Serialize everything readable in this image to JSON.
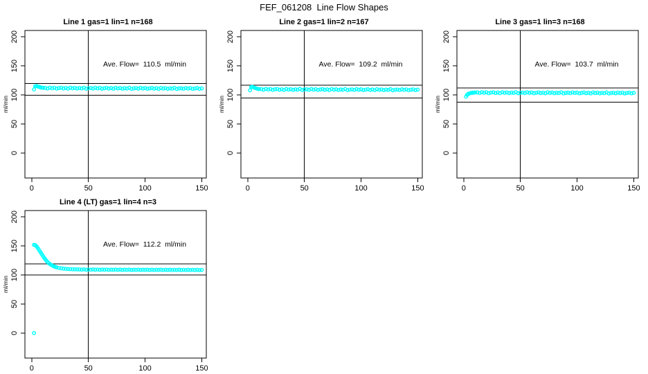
{
  "figure": {
    "title": "FEF_061208  Line Flow Shapes",
    "background": "#FFFFFF",
    "point_color": "#00FFFF",
    "axis_color": "#000000"
  },
  "chart_data": [
    {
      "type": "scatter",
      "title": "Line 1 gas=1 lin=1 n=168",
      "annotation": "Ave. Flow=  110.5  ml/min",
      "ave_flow_ml_min": 110.5,
      "n": 168,
      "xlabel": "",
      "ylabel": "ml/min",
      "xlim": [
        -6,
        154
      ],
      "ylim": [
        -43,
        211
      ],
      "xticks": [
        0,
        50,
        100,
        150
      ],
      "yticks": [
        0,
        50,
        100,
        150,
        200
      ],
      "grid": false,
      "legend": "none",
      "marker": "open-circle",
      "ref_lines_h": [
        99.5,
        119.5
      ],
      "ref_lines_v": [
        50
      ],
      "points": [
        [
          2,
          109.5
        ],
        [
          3,
          114.8
        ],
        [
          4,
          115.3
        ],
        [
          5,
          115
        ],
        [
          6,
          114.2
        ],
        [
          7,
          113.6
        ],
        [
          8,
          113
        ],
        [
          9,
          112.6
        ],
        [
          10,
          112.3
        ],
        [
          12,
          112.1
        ],
        [
          14,
          111.2
        ],
        [
          16,
          112.6
        ],
        [
          18,
          111.5
        ],
        [
          20,
          112.3
        ],
        [
          22,
          110.9
        ],
        [
          24,
          111.8
        ],
        [
          26,
          112.4
        ],
        [
          28,
          111.2
        ],
        [
          30,
          112
        ],
        [
          32,
          110.9
        ],
        [
          34,
          112.5
        ],
        [
          36,
          111.5
        ],
        [
          38,
          112.1
        ],
        [
          40,
          111
        ],
        [
          42,
          111.8
        ],
        [
          44,
          111.3
        ],
        [
          46,
          112.6
        ],
        [
          48,
          110.7
        ],
        [
          50,
          111.6
        ],
        [
          52,
          111.9
        ],
        [
          54,
          111.1
        ],
        [
          56,
          112.4
        ],
        [
          58,
          111.4
        ],
        [
          60,
          112.1
        ],
        [
          62,
          110.8
        ],
        [
          64,
          111.6
        ],
        [
          66,
          112.2
        ],
        [
          68,
          111
        ],
        [
          70,
          111.8
        ],
        [
          72,
          110.7
        ],
        [
          74,
          112.3
        ],
        [
          76,
          111.3
        ],
        [
          78,
          111.9
        ],
        [
          80,
          110.8
        ],
        [
          82,
          111.6
        ],
        [
          84,
          111.1
        ],
        [
          86,
          112.4
        ],
        [
          88,
          110.5
        ],
        [
          90,
          111.4
        ],
        [
          92,
          111.7
        ],
        [
          94,
          110.9
        ],
        [
          96,
          112.2
        ],
        [
          98,
          111.2
        ],
        [
          100,
          111.9
        ],
        [
          102,
          110.6
        ],
        [
          104,
          111.4
        ],
        [
          106,
          112
        ],
        [
          108,
          110.8
        ],
        [
          110,
          111.6
        ],
        [
          112,
          110.5
        ],
        [
          114,
          112.1
        ],
        [
          116,
          111.1
        ],
        [
          118,
          111.7
        ],
        [
          120,
          110.6
        ],
        [
          122,
          111.4
        ],
        [
          124,
          110.9
        ],
        [
          126,
          112.2
        ],
        [
          128,
          110.3
        ],
        [
          130,
          111.2
        ],
        [
          132,
          111.5
        ],
        [
          134,
          110.7
        ],
        [
          136,
          112
        ],
        [
          138,
          111
        ],
        [
          140,
          111.7
        ],
        [
          142,
          110.4
        ],
        [
          144,
          111.2
        ],
        [
          146,
          111.8
        ],
        [
          148,
          110.6
        ],
        [
          150,
          111.4
        ]
      ]
    },
    {
      "type": "scatter",
      "title": "Line 2 gas=1 lin=2 n=167",
      "annotation": "Ave. Flow=  109.2  ml/min",
      "ave_flow_ml_min": 109.2,
      "n": 167,
      "xlabel": "",
      "ylabel": "ml/min",
      "xlim": [
        -6,
        154
      ],
      "ylim": [
        -43,
        211
      ],
      "xticks": [
        0,
        50,
        100,
        150
      ],
      "yticks": [
        0,
        50,
        100,
        150,
        200
      ],
      "grid": false,
      "legend": "none",
      "marker": "open-circle",
      "ref_lines_h": [
        95,
        117
      ],
      "ref_lines_v": [
        50
      ],
      "points": [
        [
          2,
          108
        ],
        [
          3,
          113.5
        ],
        [
          4,
          114
        ],
        [
          5,
          113.3
        ],
        [
          6,
          112.4
        ],
        [
          7,
          111.6
        ],
        [
          8,
          111
        ],
        [
          9,
          110.5
        ],
        [
          10,
          110.1
        ],
        [
          12,
          110
        ],
        [
          14,
          109.1
        ],
        [
          16,
          110.4
        ],
        [
          18,
          109.4
        ],
        [
          20,
          110.1
        ],
        [
          22,
          108.8
        ],
        [
          24,
          109.7
        ],
        [
          26,
          110.2
        ],
        [
          28,
          109
        ],
        [
          30,
          109.8
        ],
        [
          32,
          108.7
        ],
        [
          34,
          110.3
        ],
        [
          36,
          109.3
        ],
        [
          38,
          109.9
        ],
        [
          40,
          108.8
        ],
        [
          42,
          109.6
        ],
        [
          44,
          109.1
        ],
        [
          46,
          110.4
        ],
        [
          48,
          108.5
        ],
        [
          50,
          109.4
        ],
        [
          52,
          109.7
        ],
        [
          54,
          108.9
        ],
        [
          56,
          110.2
        ],
        [
          58,
          109.2
        ],
        [
          60,
          109.9
        ],
        [
          62,
          108.6
        ],
        [
          64,
          109.4
        ],
        [
          66,
          110
        ],
        [
          68,
          108.8
        ],
        [
          70,
          109.6
        ],
        [
          72,
          108.5
        ],
        [
          74,
          110.1
        ],
        [
          76,
          109.1
        ],
        [
          78,
          109.7
        ],
        [
          80,
          108.6
        ],
        [
          82,
          109.4
        ],
        [
          84,
          108.9
        ],
        [
          86,
          110.2
        ],
        [
          88,
          108.3
        ],
        [
          90,
          109.2
        ],
        [
          92,
          109.5
        ],
        [
          94,
          108.7
        ],
        [
          96,
          110
        ],
        [
          98,
          109
        ],
        [
          100,
          109.7
        ],
        [
          102,
          108.4
        ],
        [
          104,
          109.2
        ],
        [
          106,
          109.8
        ],
        [
          108,
          108.6
        ],
        [
          110,
          109.4
        ],
        [
          112,
          108.3
        ],
        [
          114,
          109.9
        ],
        [
          116,
          108.9
        ],
        [
          118,
          109.5
        ],
        [
          120,
          108.4
        ],
        [
          122,
          109.2
        ],
        [
          124,
          108.7
        ],
        [
          126,
          110
        ],
        [
          128,
          108.1
        ],
        [
          130,
          109
        ],
        [
          132,
          109.3
        ],
        [
          134,
          108.5
        ],
        [
          136,
          109.8
        ],
        [
          138,
          108.8
        ],
        [
          140,
          109.5
        ],
        [
          142,
          108.2
        ],
        [
          144,
          109
        ],
        [
          146,
          109.6
        ],
        [
          148,
          108.4
        ],
        [
          150,
          109.2
        ]
      ]
    },
    {
      "type": "scatter",
      "title": "Line 3 gas=1 lin=3 n=168",
      "annotation": "Ave. Flow=  103.7  ml/min",
      "ave_flow_ml_min": 103.7,
      "n": 168,
      "xlabel": "",
      "ylabel": "ml/min",
      "xlim": [
        -6,
        154
      ],
      "ylim": [
        -43,
        211
      ],
      "xticks": [
        0,
        50,
        100,
        150
      ],
      "yticks": [
        0,
        50,
        100,
        150,
        200
      ],
      "grid": false,
      "legend": "none",
      "marker": "open-circle",
      "ref_lines_h": [
        87.5,
        112
      ],
      "ref_lines_v": [
        50
      ],
      "points": [
        [
          2,
          97
        ],
        [
          3,
          100.2
        ],
        [
          4,
          101.8
        ],
        [
          5,
          102.6
        ],
        [
          6,
          103.2
        ],
        [
          7,
          103.6
        ],
        [
          8,
          103.9
        ],
        [
          9,
          104.1
        ],
        [
          10,
          104.2
        ],
        [
          12,
          104.4
        ],
        [
          14,
          103.5
        ],
        [
          16,
          104.8
        ],
        [
          18,
          103.8
        ],
        [
          20,
          104.5
        ],
        [
          22,
          103.1
        ],
        [
          24,
          104
        ],
        [
          26,
          104.6
        ],
        [
          28,
          103.4
        ],
        [
          30,
          104.2
        ],
        [
          32,
          103.1
        ],
        [
          34,
          104.7
        ],
        [
          36,
          103.7
        ],
        [
          38,
          104.3
        ],
        [
          40,
          103.2
        ],
        [
          42,
          104
        ],
        [
          44,
          103.5
        ],
        [
          46,
          104.8
        ],
        [
          48,
          102.9
        ],
        [
          50,
          103.8
        ],
        [
          52,
          104.1
        ],
        [
          54,
          103.3
        ],
        [
          56,
          104.6
        ],
        [
          58,
          103.6
        ],
        [
          60,
          104.3
        ],
        [
          62,
          103
        ],
        [
          64,
          103.8
        ],
        [
          66,
          104.4
        ],
        [
          68,
          103.2
        ],
        [
          70,
          104
        ],
        [
          72,
          102.9
        ],
        [
          74,
          104.5
        ],
        [
          76,
          103.5
        ],
        [
          78,
          104.1
        ],
        [
          80,
          103
        ],
        [
          82,
          103.8
        ],
        [
          84,
          103.3
        ],
        [
          86,
          104.6
        ],
        [
          88,
          102.7
        ],
        [
          90,
          103.6
        ],
        [
          92,
          103.9
        ],
        [
          94,
          103.1
        ],
        [
          96,
          104.4
        ],
        [
          98,
          103.4
        ],
        [
          100,
          104.1
        ],
        [
          102,
          102.8
        ],
        [
          104,
          103.6
        ],
        [
          106,
          104.2
        ],
        [
          108,
          103
        ],
        [
          110,
          103.8
        ],
        [
          112,
          102.7
        ],
        [
          114,
          104.3
        ],
        [
          116,
          103.3
        ],
        [
          118,
          103.9
        ],
        [
          120,
          102.8
        ],
        [
          122,
          103.6
        ],
        [
          124,
          103.1
        ],
        [
          126,
          104.4
        ],
        [
          128,
          102.5
        ],
        [
          130,
          103.4
        ],
        [
          132,
          103.7
        ],
        [
          134,
          102.9
        ],
        [
          136,
          104.2
        ],
        [
          138,
          103.2
        ],
        [
          140,
          103.9
        ],
        [
          142,
          102.6
        ],
        [
          144,
          103.4
        ],
        [
          146,
          104
        ],
        [
          148,
          102.8
        ],
        [
          150,
          103.6
        ]
      ]
    },
    {
      "type": "scatter",
      "title": "Line 4 (LT) gas=1 lin=4 n=3",
      "annotation": "Ave. Flow=  112.2  ml/min",
      "ave_flow_ml_min": 112.2,
      "n": 3,
      "xlabel": "",
      "ylabel": "ml/min",
      "xlim": [
        -6,
        154
      ],
      "ylim": [
        -43,
        211
      ],
      "xticks": [
        0,
        50,
        100,
        150
      ],
      "yticks": [
        0,
        50,
        100,
        150,
        200
      ],
      "grid": false,
      "legend": "none",
      "marker": "open-circle",
      "ref_lines_h": [
        100,
        119
      ],
      "ref_lines_v": [
        50
      ],
      "points": [
        [
          2,
          0
        ],
        [
          2,
          152
        ],
        [
          3,
          151.5
        ],
        [
          4,
          150
        ],
        [
          5,
          147.5
        ],
        [
          6,
          144.5
        ],
        [
          7,
          141.5
        ],
        [
          8,
          138.5
        ],
        [
          9,
          135.5
        ],
        [
          10,
          132.5
        ],
        [
          11,
          129.5
        ],
        [
          12,
          127
        ],
        [
          13,
          124.5
        ],
        [
          14,
          122.5
        ],
        [
          15,
          120.5
        ],
        [
          16,
          119
        ],
        [
          17,
          117.5
        ],
        [
          18,
          116.5
        ],
        [
          19,
          115.5
        ],
        [
          20,
          114.5
        ],
        [
          21,
          113.8
        ],
        [
          22,
          113.2
        ],
        [
          24,
          112.2
        ],
        [
          26,
          111.5
        ],
        [
          28,
          111
        ],
        [
          30,
          110.6
        ],
        [
          32,
          110.3
        ],
        [
          34,
          110.1
        ],
        [
          36,
          109.9
        ],
        [
          38,
          109.8
        ],
        [
          40,
          109.7
        ],
        [
          42,
          109.6
        ],
        [
          44,
          109.3
        ],
        [
          46,
          109.8
        ],
        [
          48,
          109
        ],
        [
          50,
          109.5
        ],
        [
          52,
          109.2
        ],
        [
          54,
          109.6
        ],
        [
          56,
          109.1
        ],
        [
          58,
          109.5
        ],
        [
          60,
          109
        ],
        [
          62,
          109.4
        ],
        [
          64,
          109.1
        ],
        [
          66,
          109.5
        ],
        [
          68,
          108.9
        ],
        [
          70,
          109.3
        ],
        [
          72,
          109
        ],
        [
          74,
          109.4
        ],
        [
          76,
          108.9
        ],
        [
          78,
          109.3
        ],
        [
          80,
          108.8
        ],
        [
          82,
          109.2
        ],
        [
          84,
          108.9
        ],
        [
          86,
          109.3
        ],
        [
          88,
          108.7
        ],
        [
          90,
          109.1
        ],
        [
          92,
          108.9
        ],
        [
          94,
          109.3
        ],
        [
          96,
          108.7
        ],
        [
          98,
          109.1
        ],
        [
          100,
          108.8
        ],
        [
          102,
          109.2
        ],
        [
          104,
          108.7
        ],
        [
          106,
          109.1
        ],
        [
          108,
          108.6
        ],
        [
          110,
          109
        ],
        [
          112,
          108.8
        ],
        [
          114,
          109.2
        ],
        [
          116,
          108.6
        ],
        [
          118,
          109
        ],
        [
          120,
          108.7
        ],
        [
          122,
          109.1
        ],
        [
          124,
          108.5
        ],
        [
          126,
          108.9
        ],
        [
          128,
          108.7
        ],
        [
          130,
          109.1
        ],
        [
          132,
          108.5
        ],
        [
          134,
          108.9
        ],
        [
          136,
          108.6
        ],
        [
          138,
          109
        ],
        [
          140,
          108.5
        ],
        [
          142,
          108.9
        ],
        [
          144,
          108.6
        ],
        [
          146,
          109
        ],
        [
          148,
          108.4
        ],
        [
          150,
          108.8
        ]
      ]
    }
  ]
}
